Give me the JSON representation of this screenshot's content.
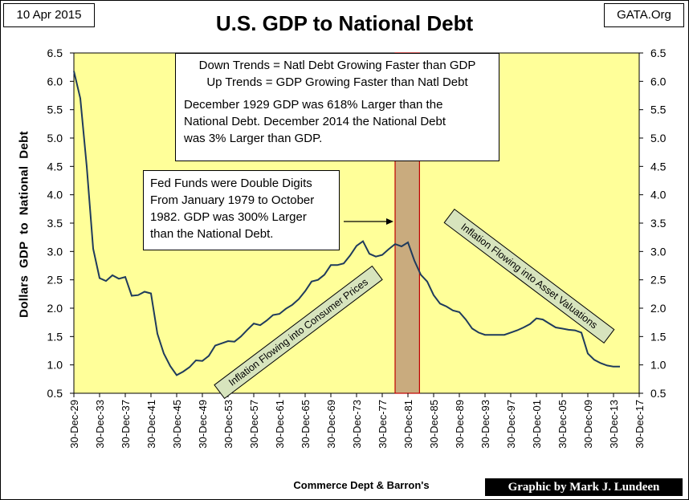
{
  "header": {
    "date": "10 Apr 2015",
    "source_site": "GATA.Org"
  },
  "colors": {
    "plot_bg": "#ffff99",
    "line": "#1f3b5c",
    "highlight_fill": "#c9ab7e",
    "highlight_border": "#c00000",
    "banner_bg": "#d7e4bd"
  },
  "annotations": {
    "trend_line1": "Down Trends = Natl Debt Growing Faster than GDP",
    "trend_line2": "Up Trends = GDP Growing Faster than Natl Debt",
    "compare_line1": "December 1929 GDP was 618% Larger than the",
    "compare_line2": "National Debt.  December 2014 the National Debt",
    "compare_line3": "was 3% Larger than GDP.",
    "fed_line1": "Fed Funds were Double Digits",
    "fed_line2": "From January 1979 to October",
    "fed_line3": "1982.  GDP was 300% Larger",
    "fed_line4": "than the National Debt.",
    "banner_consumer": "Inflation Flowing into Consumer Prices",
    "banner_assets": "Inflation Flowing into Asset Valuations"
  },
  "footer": {
    "credit": "Graphic by Mark J. Lundeen"
  },
  "chart_data": {
    "type": "line",
    "title": "U.S. GDP to National Debt",
    "xlabel": "Commerce Dept & Barron's",
    "ylabel": "Dollars  GDP  to  National  Debt",
    "ylim": [
      0.5,
      6.5
    ],
    "y_ticks": [
      "0.5",
      "1.0",
      "1.5",
      "2.0",
      "2.5",
      "3.0",
      "3.5",
      "4.0",
      "4.5",
      "5.0",
      "5.5",
      "6.0",
      "6.5"
    ],
    "x_range": [
      1929,
      2017
    ],
    "x_ticks": [
      "30-Dec-29",
      "30-Dec-33",
      "30-Dec-37",
      "30-Dec-41",
      "30-Dec-45",
      "30-Dec-49",
      "30-Dec-53",
      "30-Dec-57",
      "30-Dec-61",
      "30-Dec-65",
      "30-Dec-69",
      "30-Dec-73",
      "30-Dec-77",
      "30-Dec-81",
      "30-Dec-85",
      "30-Dec-89",
      "30-Dec-93",
      "30-Dec-97",
      "30-Dec-01",
      "30-Dec-05",
      "30-Dec-09",
      "30-Dec-13",
      "30-Dec-17"
    ],
    "highlight_period": {
      "start": 1979.0,
      "end": 1982.8
    },
    "series": [
      {
        "x": [
          1929,
          1930,
          1931,
          1932,
          1933,
          1934,
          1935,
          1936,
          1937,
          1938,
          1939,
          1940,
          1941,
          1942,
          1943,
          1944,
          1945,
          1946,
          1947,
          1948,
          1949,
          1950,
          1951,
          1952,
          1953,
          1954,
          1955,
          1956,
          1957,
          1958,
          1959,
          1960,
          1961,
          1962,
          1963,
          1964,
          1965,
          1966,
          1967,
          1968,
          1969,
          1970,
          1971,
          1972,
          1973,
          1974,
          1975,
          1976,
          1977,
          1978,
          1979,
          1980,
          1981,
          1982,
          1983,
          1984,
          1985,
          1986,
          1987,
          1988,
          1989,
          1990,
          1991,
          1992,
          1993,
          1994,
          1995,
          1996,
          1997,
          1998,
          1999,
          2000,
          2001,
          2002,
          2003,
          2004,
          2005,
          2006,
          2007,
          2008,
          2009,
          2010,
          2011,
          2012,
          2013,
          2014
        ],
        "values": [
          6.18,
          5.7,
          4.5,
          3.05,
          2.53,
          2.48,
          2.58,
          2.52,
          2.55,
          2.22,
          2.23,
          2.29,
          2.26,
          1.55,
          1.2,
          0.98,
          0.82,
          0.88,
          0.96,
          1.08,
          1.07,
          1.16,
          1.34,
          1.38,
          1.42,
          1.41,
          1.5,
          1.62,
          1.73,
          1.7,
          1.78,
          1.88,
          1.9,
          1.99,
          2.06,
          2.16,
          2.3,
          2.47,
          2.5,
          2.59,
          2.76,
          2.76,
          2.79,
          2.93,
          3.1,
          3.18,
          2.96,
          2.91,
          2.94,
          3.04,
          3.13,
          3.09,
          3.16,
          2.84,
          2.59,
          2.47,
          2.23,
          2.08,
          2.03,
          1.96,
          1.93,
          1.8,
          1.64,
          1.57,
          1.53,
          1.53,
          1.53,
          1.53,
          1.57,
          1.61,
          1.66,
          1.72,
          1.82,
          1.8,
          1.73,
          1.66,
          1.64,
          1.62,
          1.61,
          1.57,
          1.2,
          1.09,
          1.03,
          0.99,
          0.97,
          0.97
        ]
      }
    ]
  }
}
